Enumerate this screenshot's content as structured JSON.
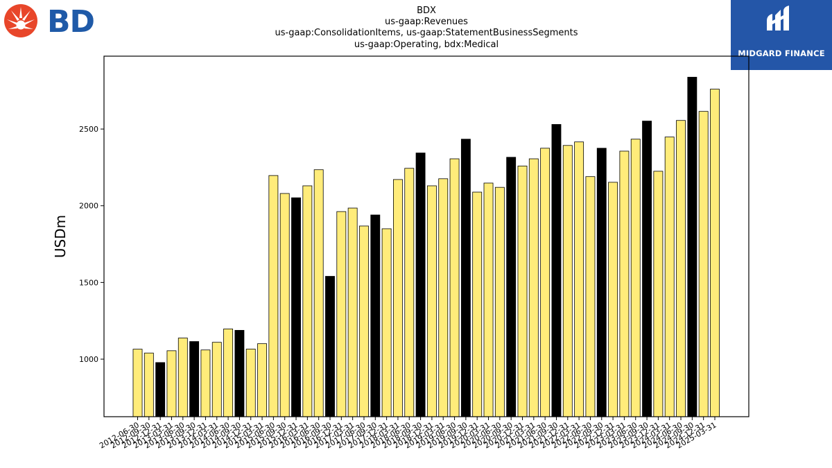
{
  "titles": [
    "BDX",
    "us-gaap:Revenues",
    "us-gaap:ConsolidationItems, us-gaap:StatementBusinessSegments",
    "us-gaap:Operating, bdx:Medical"
  ],
  "logos": {
    "company_text": "BD",
    "company_color": "#1f5aa8",
    "company_mark_color": "#e8462a",
    "watermark_text": "MIDGARD FINANCE",
    "watermark_bg": "#2456a8"
  },
  "colors": {
    "bar_default": "#ffec7a",
    "bar_highlight": "#000000"
  },
  "chart_data": {
    "type": "bar",
    "ylabel": "USDm",
    "ylim": [
      625,
      2975
    ],
    "yticks": [
      1000,
      1500,
      2000,
      2500
    ],
    "categories": [
      "2012-06-30",
      "2012-09-30",
      "2012-12-31",
      "2013-03-31",
      "2013-06-30",
      "2013-09-30",
      "2013-12-31",
      "2014-03-31",
      "2014-06-30",
      "2014-09-30",
      "2014-12-31",
      "2015-03-31",
      "2015-06-30",
      "2015-09-30",
      "2015-12-31",
      "2016-03-31",
      "2016-06-30",
      "2016-09-30",
      "2016-12-31",
      "2017-03-31",
      "2017-06-30",
      "2017-09-30",
      "2017-12-31",
      "2018-03-31",
      "2018-06-30",
      "2018-09-30",
      "2018-12-31",
      "2019-03-31",
      "2019-06-30",
      "2019-09-30",
      "2019-12-31",
      "2020-03-31",
      "2020-06-30",
      "2020-09-30",
      "2020-12-31",
      "2021-03-31",
      "2021-06-30",
      "2021-09-30",
      "2021-12-31",
      "2022-03-31",
      "2022-06-30",
      "2022-09-30",
      "2022-12-31",
      "2023-03-31",
      "2023-06-30",
      "2023-09-30",
      "2023-12-31",
      "2024-03-31",
      "2024-06-30",
      "2024-09-30",
      "2024-12-31",
      "2025-03-31"
    ],
    "values": [
      1065,
      1040,
      978,
      1055,
      1138,
      1115,
      1060,
      1110,
      1197,
      1188,
      1066,
      1101,
      2197,
      2080,
      2052,
      2130,
      2235,
      1540,
      1962,
      1985,
      1868,
      1940,
      1850,
      2171,
      2244,
      2344,
      2130,
      2176,
      2306,
      2434,
      2089,
      2148,
      2120,
      2316,
      2259,
      2306,
      2375,
      2530,
      2393,
      2416,
      2190,
      2375,
      2153,
      2356,
      2434,
      2552,
      2225,
      2448,
      2556,
      2838,
      2615,
      2760
    ],
    "highlight": [
      false,
      false,
      true,
      false,
      false,
      true,
      false,
      false,
      false,
      true,
      false,
      false,
      false,
      false,
      true,
      false,
      false,
      true,
      false,
      false,
      false,
      true,
      false,
      false,
      false,
      true,
      false,
      false,
      false,
      true,
      false,
      false,
      false,
      true,
      false,
      false,
      false,
      true,
      false,
      false,
      false,
      true,
      false,
      false,
      false,
      true,
      false,
      false,
      false,
      true,
      false,
      false
    ],
    "grid": false,
    "legend": "none"
  }
}
